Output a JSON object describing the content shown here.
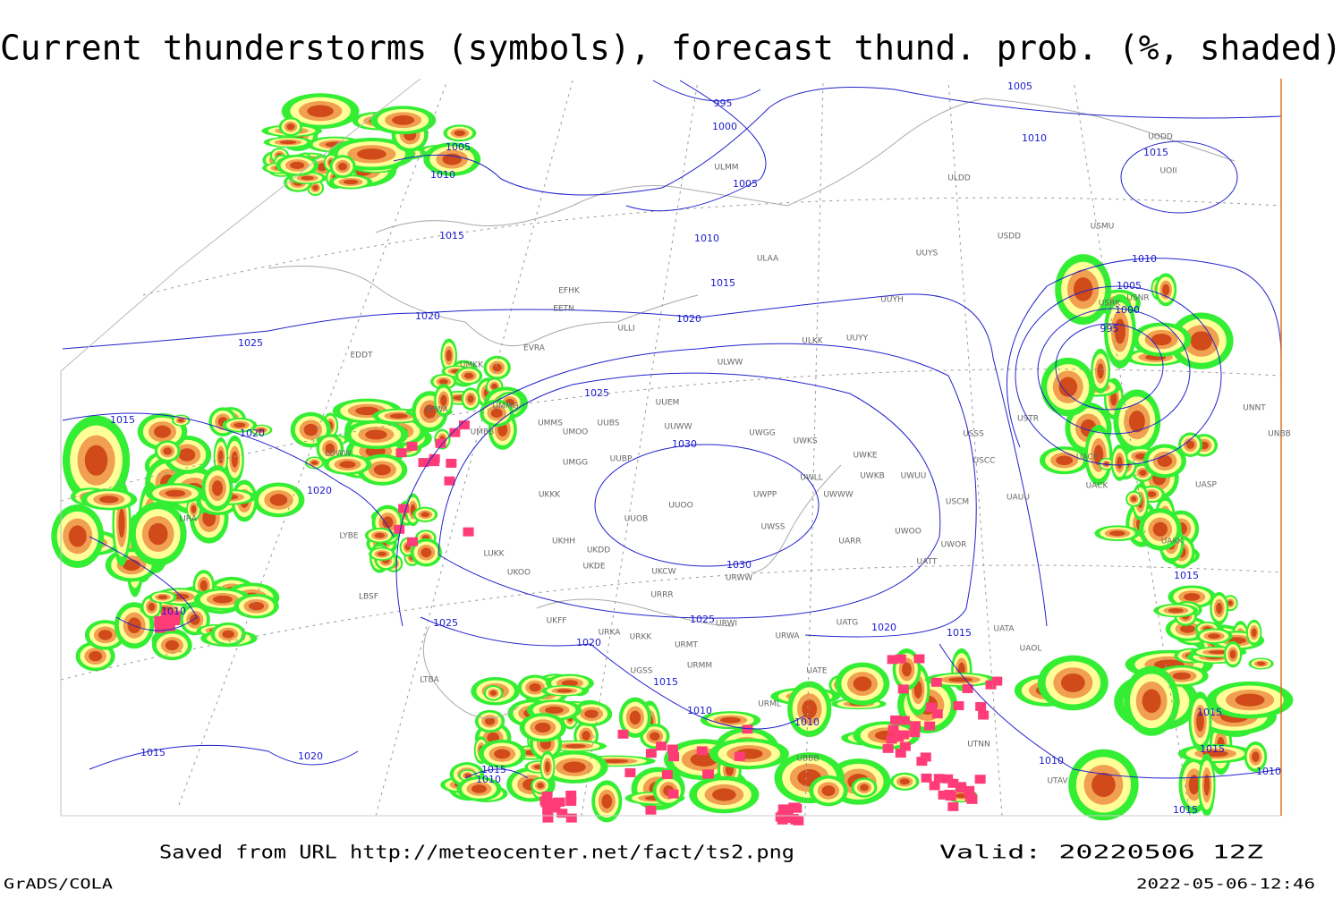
{
  "header": {
    "title": "Current thunderstorms (symbols), forecast thund. prob. (%, shaded)"
  },
  "footer": {
    "source": "Saved from URL http://meteocenter.net/fact/ts2.png",
    "valid": "Valid: 20220506 12Z",
    "software": "GrADS/COLA",
    "timestamp": "2022-05-06-12:46"
  },
  "isobar_labels": [
    995,
    1000,
    1005,
    1005,
    1010,
    1015,
    1010,
    1005,
    1010,
    1015,
    1015,
    1010,
    1005,
    1000,
    995,
    1020,
    1020,
    1025,
    1025,
    1015,
    1020,
    1030,
    1020,
    1030,
    1010,
    1025,
    1025,
    1020,
    1015,
    1020,
    1015,
    1010,
    1010,
    1015,
    1015,
    1015,
    1010,
    1010,
    1015,
    1010,
    1015,
    1020,
    1015
  ],
  "stations": [
    "ULMM",
    "ULDD",
    "USDD",
    "USMU",
    "UOII",
    "UODD",
    "UUYS",
    "ULAA",
    "EFHK",
    "EETN",
    "UUYH",
    "USRK",
    "USNR",
    "ULLI",
    "ULKK",
    "UUYY",
    "EVRA",
    "UMKK",
    "ULWW",
    "UUEM",
    "UMMS",
    "UMOO",
    "UUBS",
    "UUWW",
    "UWGG",
    "UWKS",
    "UMBB",
    "USSS",
    "USCC",
    "USTR",
    "UNNT",
    "UNBB",
    "UACP",
    "UACK",
    "UASP",
    "UMGG",
    "UUBP",
    "UWKE",
    "UWKB",
    "UWUU",
    "UWLL",
    "UWPP",
    "UWWW",
    "USCM",
    "UAUU",
    "UKKK",
    "UUOO",
    "UUOB",
    "UWSS",
    "UKHH",
    "UKDD",
    "UARR",
    "UWOO",
    "UWOR",
    "UATT",
    "UAKK",
    "LUKK",
    "UKDE",
    "UKOO",
    "UKCW",
    "URWW",
    "URRR",
    "LBSF",
    "UKFF",
    "URWI",
    "UATG",
    "UATA",
    "UAOL",
    "URKA",
    "URKK",
    "URMT",
    "URMM",
    "UGSS",
    "URWA",
    "UATE",
    "URML",
    "UBBB",
    "UTNN",
    "UTAV",
    "LTBA",
    "LYBE",
    "LOWW",
    "EPWA",
    "EDDT",
    "UMMG",
    "LIRA"
  ]
}
